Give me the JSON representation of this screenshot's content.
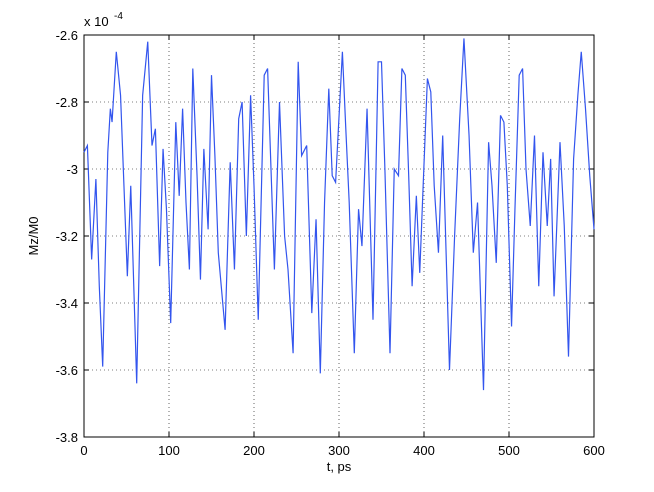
{
  "chart_data": {
    "type": "line",
    "xlabel": "t, ps",
    "ylabel": "Mz/M0",
    "y_multiplier": "x 10",
    "y_multiplier_exponent": "-4",
    "x": [
      0,
      4,
      9,
      14,
      18,
      22,
      28,
      31,
      33,
      38,
      43,
      47,
      51,
      55,
      62,
      69,
      75,
      80,
      84,
      89,
      93,
      97,
      102,
      108,
      112,
      116,
      120,
      124,
      128,
      133,
      137,
      141,
      146,
      150,
      154,
      158,
      166,
      172,
      177,
      182,
      186,
      191,
      196,
      200,
      205,
      212,
      216,
      220,
      224,
      230,
      236,
      240,
      246,
      252,
      256,
      262,
      268,
      273,
      278,
      283,
      288,
      292,
      296,
      304,
      308,
      312,
      318,
      323,
      327,
      333,
      340,
      346,
      350,
      354,
      360,
      365,
      370,
      374,
      378,
      382,
      386,
      391,
      395,
      399,
      404,
      408,
      412,
      417,
      422,
      430,
      436,
      442,
      447,
      453,
      458,
      463,
      470,
      476,
      480,
      485,
      490,
      494,
      498,
      503,
      507,
      512,
      516,
      520,
      525,
      530,
      535,
      540,
      545,
      549,
      553,
      560,
      565,
      570,
      576,
      581,
      585,
      590,
      595,
      600
    ],
    "series": [
      {
        "name": "Mz/M0",
        "color": "#3355ee",
        "values": [
          -2.95,
          -2.93,
          -3.27,
          -3.03,
          -3.35,
          -3.59,
          -2.95,
          -2.82,
          -2.86,
          -2.65,
          -2.78,
          -3.05,
          -3.32,
          -3.05,
          -3.64,
          -2.78,
          -2.62,
          -2.93,
          -2.88,
          -3.29,
          -2.94,
          -3.12,
          -3.46,
          -2.86,
          -3.08,
          -2.82,
          -3.1,
          -3.3,
          -2.7,
          -3.02,
          -3.33,
          -2.94,
          -3.18,
          -2.72,
          -2.96,
          -3.25,
          -3.48,
          -2.98,
          -3.3,
          -2.85,
          -2.8,
          -3.2,
          -2.78,
          -3.05,
          -3.45,
          -2.72,
          -2.7,
          -3.0,
          -3.3,
          -2.8,
          -3.2,
          -3.3,
          -3.55,
          -2.68,
          -2.96,
          -2.93,
          -3.43,
          -3.15,
          -3.61,
          -3.1,
          -2.76,
          -3.02,
          -3.04,
          -2.65,
          -2.88,
          -3.1,
          -3.55,
          -3.12,
          -3.23,
          -2.82,
          -3.45,
          -2.68,
          -2.68,
          -3.0,
          -3.55,
          -3.0,
          -3.02,
          -2.7,
          -2.72,
          -3.02,
          -3.35,
          -3.08,
          -3.31,
          -3.05,
          -2.73,
          -2.77,
          -3.05,
          -3.25,
          -2.9,
          -3.6,
          -3.2,
          -2.85,
          -2.61,
          -2.9,
          -3.25,
          -3.1,
          -3.66,
          -2.92,
          -3.05,
          -3.28,
          -2.84,
          -2.86,
          -3.05,
          -3.47,
          -3.12,
          -2.72,
          -2.7,
          -3.0,
          -3.17,
          -2.9,
          -3.35,
          -2.95,
          -3.17,
          -2.97,
          -3.38,
          -2.92,
          -3.17,
          -3.56,
          -2.97,
          -2.78,
          -2.65,
          -2.82,
          -3.02,
          -3.18
        ]
      }
    ],
    "xlim": [
      0,
      600
    ],
    "xticks": [
      0,
      100,
      200,
      300,
      400,
      500,
      600
    ],
    "ylim": [
      -3.8,
      -2.6
    ],
    "yticks": [
      -3.8,
      -3.6,
      -3.4,
      -3.2,
      -3,
      -2.8,
      -2.6
    ],
    "grid": true
  }
}
